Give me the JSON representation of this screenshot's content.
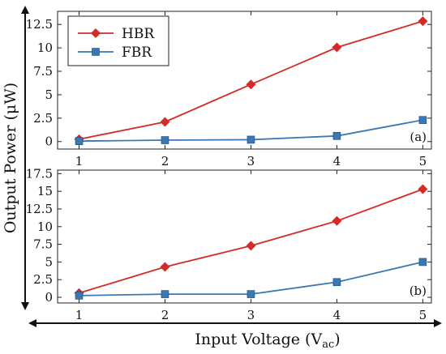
{
  "chart_data": {
    "ylabel": "Output Power (μW)",
    "xlabel_main": "Input Voltage (V",
    "xlabel_sub": "ac",
    "xlabel_close": ")",
    "legend": {
      "placement": "top-left",
      "entries": [
        {
          "name": "HBR",
          "color": "#d42a2a",
          "marker": "diamond"
        },
        {
          "name": "FBR",
          "color": "#3a78b5",
          "marker": "square"
        }
      ]
    },
    "panels": [
      {
        "tag": "(a)",
        "type": "line",
        "x": [
          1,
          2,
          3,
          4,
          5
        ],
        "x_tick_labels": [
          "1",
          "2",
          "3",
          "4",
          "5"
        ],
        "xlim": [
          0.75,
          5.1
        ],
        "ylim": [
          -0.8,
          13.9
        ],
        "y_ticks": [
          0,
          2.5,
          5,
          7.5,
          10,
          12.5
        ],
        "y_tick_labels": [
          "0",
          "2.5",
          "5",
          "7.5",
          "10",
          "12.5"
        ],
        "grid": false,
        "series": [
          {
            "name": "HBR",
            "color": "#d42a2a",
            "marker": "diamond",
            "values": [
              0.25,
              2.1,
              6.1,
              10.05,
              12.85
            ]
          },
          {
            "name": "FBR",
            "color": "#3a78b5",
            "marker": "square",
            "values": [
              0.05,
              0.15,
              0.2,
              0.6,
              2.3
            ]
          }
        ]
      },
      {
        "tag": "(b)",
        "type": "line",
        "x": [
          1,
          2,
          3,
          4,
          5
        ],
        "x_tick_labels": [
          "1",
          "2",
          "3",
          "4",
          "5"
        ],
        "xlim": [
          0.75,
          5.1
        ],
        "ylim": [
          -0.8,
          18.0
        ],
        "y_ticks": [
          0,
          2.5,
          5,
          7.5,
          10,
          12.5,
          15,
          17.5
        ],
        "y_tick_labels": [
          "0",
          "2.5",
          "5",
          "7.5",
          "10",
          "12.5",
          "15",
          "17.5"
        ],
        "grid": false,
        "series": [
          {
            "name": "HBR",
            "color": "#d42a2a",
            "marker": "diamond",
            "values": [
              0.6,
              4.3,
              7.3,
              10.8,
              15.3
            ]
          },
          {
            "name": "FBR",
            "color": "#3a78b5",
            "marker": "square",
            "values": [
              0.25,
              0.45,
              0.45,
              2.15,
              5.0
            ]
          }
        ]
      }
    ]
  }
}
